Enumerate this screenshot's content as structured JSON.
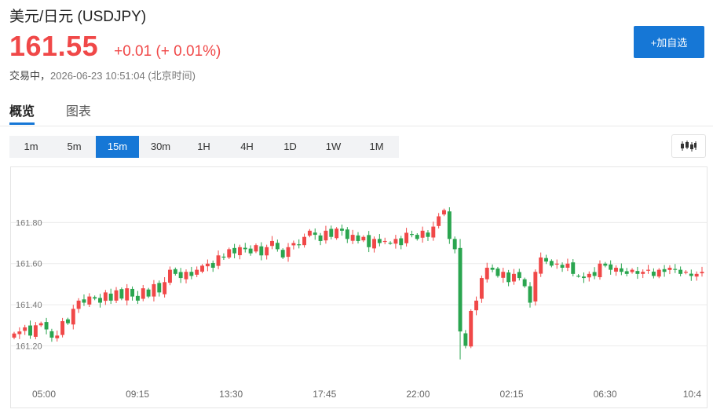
{
  "header": {
    "title": "美元/日元  (USDJPY)",
    "price": "161.55",
    "change": "+0.01 (+ 0.01%)",
    "status_label": "交易中，",
    "status_time": "2026-06-23 10:51:04 (北京时间)"
  },
  "actions": {
    "add_watchlist": "+加自选"
  },
  "tabs": [
    {
      "label": "概览",
      "active": true
    },
    {
      "label": "图表",
      "active": false
    }
  ],
  "intervals": [
    "1m",
    "5m",
    "15m",
    "30m",
    "1H",
    "4H",
    "1D",
    "1W",
    "1M"
  ],
  "active_interval": "15m",
  "chart_type_icon": "candlestick-icon",
  "colors": {
    "up": "#f04848",
    "down": "#2aa54f",
    "accent": "#1677d6",
    "price": "#f04848"
  },
  "chart_data": {
    "type": "candlestick",
    "symbol": "USDJPY",
    "interval": "15m",
    "y_ticks": [
      "161.20",
      "161.40",
      "161.60",
      "161.80"
    ],
    "ylim": [
      161.03,
      162.0
    ],
    "x_ticks": [
      "05:00",
      "09:15",
      "13:30",
      "17:45",
      "22:00",
      "02:15",
      "06:30",
      "10:4"
    ],
    "grid": true,
    "closes": [
      161.26,
      161.27,
      161.29,
      161.25,
      161.3,
      161.31,
      161.28,
      161.24,
      161.25,
      161.32,
      161.31,
      161.38,
      161.42,
      161.41,
      161.44,
      161.43,
      161.41,
      161.46,
      161.42,
      161.47,
      161.43,
      161.48,
      161.44,
      161.42,
      161.48,
      161.44,
      161.5,
      161.46,
      161.51,
      161.57,
      161.55,
      161.53,
      161.56,
      161.54,
      161.57,
      161.59,
      161.6,
      161.58,
      161.64,
      161.63,
      161.67,
      161.65,
      161.68,
      161.67,
      161.65,
      161.69,
      161.64,
      161.68,
      161.71,
      161.67,
      161.63,
      161.68,
      161.7,
      161.69,
      161.73,
      161.76,
      161.74,
      161.71,
      161.76,
      161.73,
      161.77,
      161.76,
      161.72,
      161.74,
      161.71,
      161.73,
      161.68,
      161.72,
      161.7,
      161.71,
      161.7,
      161.72,
      161.69,
      161.75,
      161.74,
      161.72,
      161.76,
      161.73,
      161.78,
      161.83,
      161.86,
      161.72,
      161.67,
      161.27,
      161.2,
      161.37,
      161.42,
      161.53,
      161.58,
      161.57,
      161.54,
      161.56,
      161.51,
      161.55,
      161.53,
      161.49,
      161.41,
      161.56,
      161.63,
      161.61,
      161.59,
      161.6,
      161.58,
      161.6,
      161.55,
      161.54,
      161.53,
      161.55,
      161.54,
      161.6,
      161.59,
      161.57,
      161.58,
      161.56,
      161.55,
      161.57,
      161.55,
      161.56,
      161.57,
      161.54,
      161.57,
      161.56,
      161.58,
      161.57,
      161.55,
      161.56,
      161.54,
      161.55,
      161.56
    ]
  }
}
